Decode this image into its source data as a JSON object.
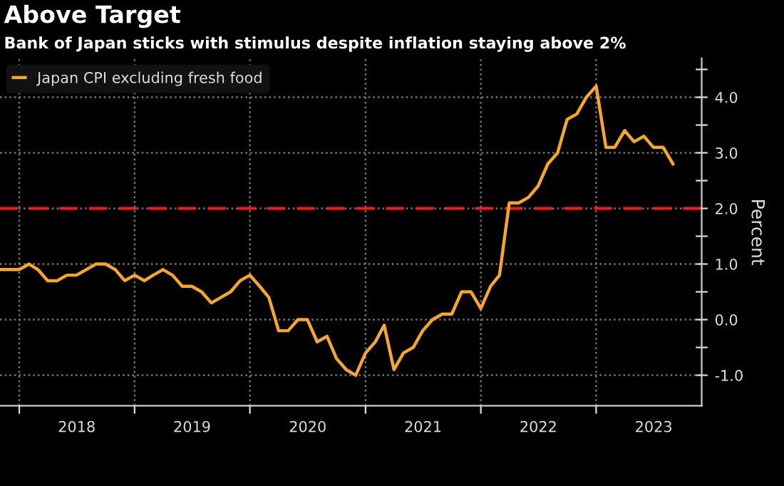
{
  "chart_data": {
    "type": "line",
    "title": "Above Target",
    "subtitle": "Bank of Japan sticks with stimulus despite inflation staying above 2%",
    "ylabel": "Percent",
    "x": [
      "2017-11",
      "2017-12",
      "2018-01",
      "2018-02",
      "2018-03",
      "2018-04",
      "2018-05",
      "2018-06",
      "2018-07",
      "2018-08",
      "2018-09",
      "2018-10",
      "2018-11",
      "2018-12",
      "2019-01",
      "2019-02",
      "2019-03",
      "2019-04",
      "2019-05",
      "2019-06",
      "2019-07",
      "2019-08",
      "2019-09",
      "2019-10",
      "2019-11",
      "2019-12",
      "2020-01",
      "2020-02",
      "2020-03",
      "2020-04",
      "2020-05",
      "2020-06",
      "2020-07",
      "2020-08",
      "2020-09",
      "2020-10",
      "2020-11",
      "2020-12",
      "2021-01",
      "2021-02",
      "2021-03",
      "2021-04",
      "2021-05",
      "2021-06",
      "2021-07",
      "2021-08",
      "2021-09",
      "2021-10",
      "2021-11",
      "2021-12",
      "2022-01",
      "2022-02",
      "2022-03",
      "2022-04",
      "2022-05",
      "2022-06",
      "2022-07",
      "2022-08",
      "2022-09",
      "2022-10",
      "2022-11",
      "2022-12",
      "2023-01",
      "2023-02",
      "2023-03",
      "2023-04",
      "2023-05",
      "2023-06",
      "2023-07",
      "2023-08",
      "2023-09"
    ],
    "series": [
      {
        "name": "Japan CPI excluding fresh food",
        "color": "#f5a630",
        "values": [
          0.9,
          0.9,
          0.9,
          1.0,
          0.9,
          0.7,
          0.7,
          0.8,
          0.8,
          0.9,
          1.0,
          1.0,
          0.9,
          0.7,
          0.8,
          0.7,
          0.8,
          0.9,
          0.8,
          0.6,
          0.6,
          0.5,
          0.3,
          0.4,
          0.5,
          0.7,
          0.8,
          0.6,
          0.4,
          -0.2,
          -0.2,
          0.0,
          0.0,
          -0.4,
          -0.3,
          -0.7,
          -0.9,
          -1.0,
          -0.6,
          -0.4,
          -0.1,
          -0.9,
          -0.6,
          -0.5,
          -0.2,
          0.0,
          0.1,
          0.1,
          0.5,
          0.5,
          0.2,
          0.6,
          0.8,
          2.1,
          2.1,
          2.2,
          2.4,
          2.8,
          3.0,
          3.6,
          3.7,
          4.0,
          4.2,
          3.1,
          3.1,
          3.4,
          3.2,
          3.3,
          3.1,
          3.1,
          2.8
        ]
      }
    ],
    "xlim": [
      "2017-11-01",
      "2023-12-01"
    ],
    "xticks": [
      {
        "value": "2018-01-01",
        "label": null
      },
      {
        "value": "2018-07-02",
        "label": "2018"
      },
      {
        "value": "2019-01-01",
        "label": null
      },
      {
        "value": "2019-07-02",
        "label": "2019"
      },
      {
        "value": "2020-01-01",
        "label": null
      },
      {
        "value": "2020-07-02",
        "label": "2020"
      },
      {
        "value": "2021-01-01",
        "label": null
      },
      {
        "value": "2021-07-02",
        "label": "2021"
      },
      {
        "value": "2022-01-01",
        "label": null
      },
      {
        "value": "2022-07-02",
        "label": "2022"
      },
      {
        "value": "2023-01-01",
        "label": null
      },
      {
        "value": "2023-07-02",
        "label": "2023"
      }
    ],
    "ylim": [
      -1.55,
      4.7
    ],
    "yticks": [
      {
        "value": -1.0,
        "label": "-1.0"
      },
      {
        "value": -0.5,
        "label": null
      },
      {
        "value": 0.0,
        "label": "0.0"
      },
      {
        "value": 0.5,
        "label": null
      },
      {
        "value": 1.0,
        "label": "1.0"
      },
      {
        "value": 1.5,
        "label": null
      },
      {
        "value": 2.0,
        "label": "2.0"
      },
      {
        "value": 2.5,
        "label": null
      },
      {
        "value": 3.0,
        "label": "3.0"
      },
      {
        "value": 3.5,
        "label": null
      },
      {
        "value": 4.0,
        "label": "4.0"
      },
      {
        "value": 4.5,
        "label": null
      }
    ],
    "ref_lines": [
      {
        "axis": "y",
        "value": 2.0,
        "color": "#ff1a1a",
        "line_style": "dashed"
      }
    ],
    "grid": true,
    "legend": "top left",
    "line_style": "solid",
    "marker": "none"
  }
}
